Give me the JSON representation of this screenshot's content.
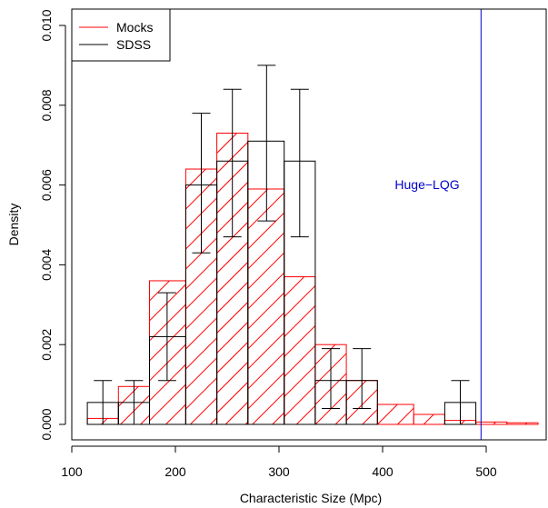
{
  "chart_data": {
    "type": "bar",
    "xlabel": "Characteristic Size (Mpc)",
    "ylabel": "Density",
    "xlim": [
      100,
      550
    ],
    "ylim": [
      0,
      0.0104
    ],
    "x_ticks": [
      {
        "value": 100,
        "label": "100"
      },
      {
        "value": 200,
        "label": "200"
      },
      {
        "value": 300,
        "label": "300"
      },
      {
        "value": 400,
        "label": "400"
      },
      {
        "value": 500,
        "label": "500"
      }
    ],
    "y_ticks": [
      {
        "value": 0.0,
        "label": "0.000"
      },
      {
        "value": 0.002,
        "label": "0.002"
      },
      {
        "value": 0.004,
        "label": "0.004"
      },
      {
        "value": 0.006,
        "label": "0.006"
      },
      {
        "value": 0.008,
        "label": "0.008"
      },
      {
        "value": 0.01,
        "label": "0.010"
      }
    ],
    "bin_edges": [
      115,
      145,
      175,
      210,
      240,
      270,
      305,
      335,
      365,
      395,
      430,
      460,
      490,
      520,
      550
    ],
    "series": [
      {
        "name": "Mocks",
        "color": "#ff0000",
        "style": "hatched",
        "values": [
          0.00015,
          0.00095,
          0.0036,
          0.0064,
          0.0073,
          0.0059,
          0.0037,
          0.002,
          0.0011,
          0.0005,
          0.00025,
          0.0001,
          6e-05,
          4e-05
        ]
      },
      {
        "name": "SDSS",
        "color": "#000000",
        "style": "outline",
        "values": [
          0.00055,
          0.00055,
          0.0022,
          0.006,
          0.0066,
          0.0071,
          0.0066,
          0.0011,
          0.0011,
          null,
          null,
          0.00055,
          null,
          null
        ],
        "error_bars": [
          {
            "x": 130,
            "low": 0.0,
            "high": 0.0011
          },
          {
            "x": 160,
            "low": 0.0,
            "high": 0.0011
          },
          {
            "x": 192,
            "low": 0.0011,
            "high": 0.0033
          },
          {
            "x": 225,
            "low": 0.0043,
            "high": 0.0078
          },
          {
            "x": 255,
            "low": 0.0047,
            "high": 0.0084
          },
          {
            "x": 288,
            "low": 0.0051,
            "high": 0.009
          },
          {
            "x": 320,
            "low": 0.0047,
            "high": 0.0084
          },
          {
            "x": 350,
            "low": 0.0004,
            "high": 0.0019
          },
          {
            "x": 380,
            "low": 0.0004,
            "high": 0.0019
          },
          {
            "x": 475,
            "low": 0.0,
            "high": 0.0011
          }
        ]
      }
    ],
    "vline": {
      "x": 495,
      "label": "Huge−LQG",
      "color": "#0000cc"
    },
    "legend": {
      "position": "top-left",
      "entries": [
        "Mocks",
        "SDSS"
      ]
    },
    "grid": false
  }
}
